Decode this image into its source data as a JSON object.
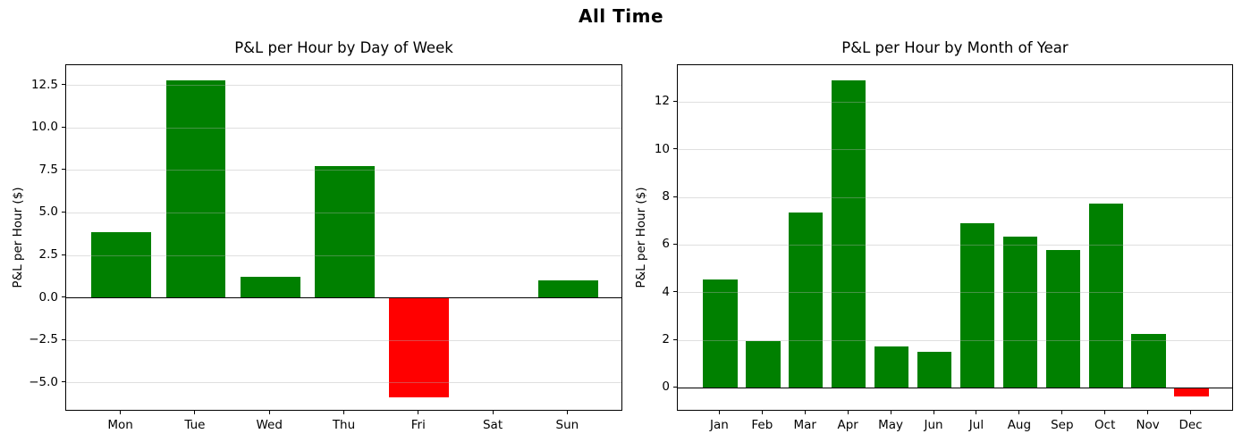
{
  "figure": {
    "suptitle": "All Time"
  },
  "chart_data": [
    {
      "type": "bar",
      "title": "P&L per Hour by Day of Week",
      "xlabel": "",
      "ylabel": "P&L per Hour ($)",
      "categories": [
        "Mon",
        "Tue",
        "Wed",
        "Thu",
        "Fri",
        "Sat",
        "Sun"
      ],
      "values": [
        3.85,
        12.8,
        1.25,
        7.75,
        -5.85,
        0.0,
        1.05
      ],
      "positive_color": "#008000",
      "negative_color": "#ff0000",
      "grid": true,
      "legend": false,
      "ylim": [
        -6.7,
        13.7
      ],
      "xlim": [
        -0.74,
        6.74
      ],
      "bar_width": 0.8,
      "yticks": [
        12.5,
        10.0,
        7.5,
        5.0,
        2.5,
        0.0,
        -2.5,
        -5.0
      ],
      "ytick_labels": [
        "12.5",
        "10.0",
        "7.5",
        "5.0",
        "2.5",
        "0.0",
        "−2.5",
        "−5.0"
      ]
    },
    {
      "type": "bar",
      "title": "P&L per Hour by Month of Year",
      "xlabel": "",
      "ylabel": "P&L per Hour ($)",
      "categories": [
        "Jan",
        "Feb",
        "Mar",
        "Apr",
        "May",
        "Jun",
        "Jul",
        "Aug",
        "Sep",
        "Oct",
        "Nov",
        "Dec"
      ],
      "values": [
        4.55,
        1.95,
        7.35,
        12.9,
        1.75,
        1.5,
        6.9,
        6.35,
        5.8,
        7.75,
        2.25,
        -0.35
      ],
      "positive_color": "#008000",
      "negative_color": "#ff0000",
      "grid": true,
      "legend": false,
      "ylim": [
        -1.0,
        13.55
      ],
      "xlim": [
        -0.99,
        11.99
      ],
      "bar_width": 0.8,
      "yticks": [
        12,
        10,
        8,
        6,
        4,
        2,
        0
      ],
      "ytick_labels": [
        "12",
        "10",
        "8",
        "6",
        "4",
        "2",
        "0"
      ]
    }
  ]
}
